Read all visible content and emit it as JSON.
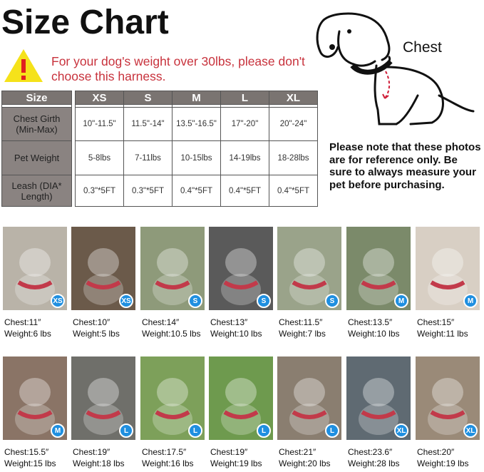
{
  "title": "Size Chart",
  "warning": {
    "icon": "warning-triangle-icon",
    "text": "For your dog's weight over 30lbs, please don't choose this harness.",
    "color": "#c8323c"
  },
  "diagram": {
    "chest_label": "Chest"
  },
  "note": "Please note that these photos are for reference only. Be sure to always measure your pet before purchasing.",
  "table": {
    "header": "Size",
    "sizes": [
      "XS",
      "S",
      "M",
      "L",
      "XL"
    ],
    "rows": [
      {
        "label": "Chest Girth (Min-Max)",
        "values": [
          "10\"-11.5\"",
          "11.5\"-14\"",
          "13.5\"-16.5\"",
          "17\"-20\"",
          "20\"-24\""
        ]
      },
      {
        "label": "Pet Weight",
        "values": [
          "5-8lbs",
          "7-11lbs",
          "10-15lbs",
          "14-19lbs",
          "18-28lbs"
        ]
      },
      {
        "label": "Leash (DIA* Length)",
        "values": [
          "0.3\"*5FT",
          "0.3\"*5FT",
          "0.4\"*5FT",
          "0.4\"*5FT",
          "0.4\"*5FT"
        ]
      }
    ]
  },
  "photos": [
    {
      "size": "XS",
      "chest": "Chest:11″",
      "weight": "Weight:6 lbs",
      "bg": "#b9b3a8"
    },
    {
      "size": "XS",
      "chest": "Chest:10″",
      "weight": "Weight:5 lbs",
      "bg": "#6b5a4a"
    },
    {
      "size": "S",
      "chest": "Chest:14″",
      "weight": "Weight:10.5 lbs",
      "bg": "#8e9a7a"
    },
    {
      "size": "S",
      "chest": "Chest:13″",
      "weight": "Weight:10 lbs",
      "bg": "#5a5a5a"
    },
    {
      "size": "S",
      "chest": "Chest:11.5″",
      "weight": "Weight:7 lbs",
      "bg": "#9aa38a"
    },
    {
      "size": "M",
      "chest": "Chest:13.5″",
      "weight": "Weight:10 lbs",
      "bg": "#7b8a6a"
    },
    {
      "size": "M",
      "chest": "Chest:15″",
      "weight": "Weight:11 lbs",
      "bg": "#d8cfc4"
    },
    {
      "size": "M",
      "chest": "Chest:15.5″",
      "weight": "Weight:15 lbs",
      "bg": "#8a7466"
    },
    {
      "size": "L",
      "chest": "Chest:19″",
      "weight": "Weight:18 lbs",
      "bg": "#6f6f6a"
    },
    {
      "size": "L",
      "chest": "Chest:17.5″",
      "weight": "Weight:16 lbs",
      "bg": "#7da05a"
    },
    {
      "size": "L",
      "chest": "Chest:19″",
      "weight": "Weight:19 lbs",
      "bg": "#6e9a4e"
    },
    {
      "size": "L",
      "chest": "Chest:21″",
      "weight": "Weight:20 lbs",
      "bg": "#8a7e70"
    },
    {
      "size": "XL",
      "chest": "Chest:23.6″",
      "weight": "Weight:28 lbs",
      "bg": "#5f6a72"
    },
    {
      "size": "XL",
      "chest": "Chest:20″",
      "weight": "Weight:19 lbs",
      "bg": "#9a8a78"
    }
  ],
  "badge_color": "#1f8fe0"
}
